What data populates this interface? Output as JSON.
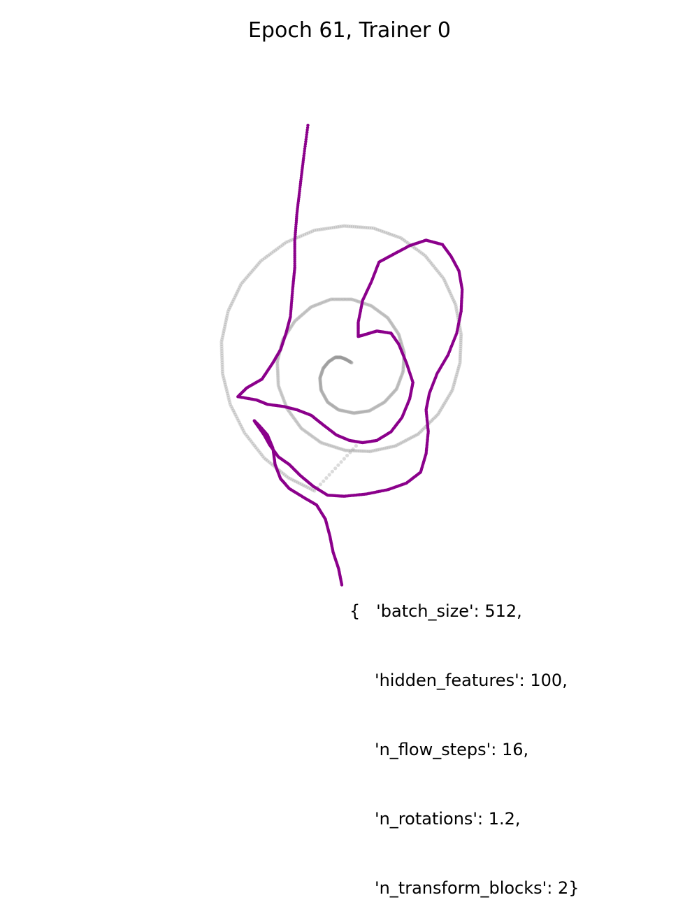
{
  "chart_data": {
    "type": "scatter",
    "title": "Epoch 61, Trainer 0",
    "axes_visible": false,
    "grid": false,
    "xlim": [
      -2.3,
      2.3
    ],
    "ylim": [
      -2.3,
      2.3
    ],
    "series": [
      {
        "role": "target",
        "color": "#999999",
        "values": [
          [
            0.02,
            -0.12
          ],
          [
            -0.03,
            -0.09
          ],
          [
            -0.08,
            -0.07
          ],
          [
            -0.13,
            -0.07
          ],
          [
            -0.19,
            -0.11
          ],
          [
            -0.24,
            -0.17
          ],
          [
            -0.27,
            -0.26
          ],
          [
            -0.26,
            -0.37
          ],
          [
            -0.2,
            -0.48
          ],
          [
            -0.1,
            -0.55
          ],
          [
            0.04,
            -0.58
          ],
          [
            0.18,
            -0.56
          ],
          [
            0.32,
            -0.48
          ],
          [
            0.43,
            -0.36
          ],
          [
            0.49,
            -0.2
          ],
          [
            0.5,
            -0.03
          ],
          [
            0.45,
            0.14
          ],
          [
            0.35,
            0.29
          ],
          [
            0.2,
            0.4
          ],
          [
            0.02,
            0.46
          ],
          [
            -0.17,
            0.46
          ],
          [
            -0.35,
            0.39
          ],
          [
            -0.5,
            0.26
          ],
          [
            -0.61,
            0.09
          ],
          [
            -0.66,
            -0.11
          ],
          [
            -0.65,
            -0.33
          ],
          [
            -0.57,
            -0.54
          ],
          [
            -0.44,
            -0.72
          ],
          [
            -0.26,
            -0.85
          ],
          [
            -0.04,
            -0.92
          ],
          [
            0.19,
            -0.93
          ],
          [
            0.42,
            -0.88
          ],
          [
            0.63,
            -0.77
          ],
          [
            0.81,
            -0.59
          ],
          [
            0.94,
            -0.37
          ],
          [
            1.01,
            -0.12
          ],
          [
            1.02,
            0.14
          ],
          [
            0.97,
            0.41
          ],
          [
            0.86,
            0.65
          ],
          [
            0.69,
            0.86
          ],
          [
            0.47,
            1.02
          ],
          [
            0.22,
            1.11
          ],
          [
            -0.05,
            1.13
          ],
          [
            -0.32,
            1.09
          ],
          [
            -0.58,
            0.98
          ],
          [
            -0.81,
            0.81
          ],
          [
            -0.99,
            0.6
          ],
          [
            -1.11,
            0.35
          ],
          [
            -1.17,
            0.07
          ],
          [
            -1.16,
            -0.22
          ],
          [
            -1.09,
            -0.5
          ],
          [
            -0.96,
            -0.76
          ],
          [
            -0.78,
            -0.99
          ],
          [
            -0.56,
            -1.17
          ],
          [
            -0.32,
            -1.29
          ],
          [
            0.06,
            -0.88
          ]
        ]
      },
      {
        "role": "samples",
        "color": "#8b008b",
        "values": [
          [
            -0.38,
            2.05
          ],
          [
            -0.42,
            1.75
          ],
          [
            -0.45,
            1.5
          ],
          [
            -0.48,
            1.25
          ],
          [
            -0.5,
            1.0
          ],
          [
            -0.5,
            0.75
          ],
          [
            -0.52,
            0.55
          ],
          [
            -0.54,
            0.3
          ],
          [
            -0.58,
            0.15
          ],
          [
            -0.63,
            0.0
          ],
          [
            -0.7,
            -0.12
          ],
          [
            -0.8,
            -0.27
          ],
          [
            -0.94,
            -0.35
          ],
          [
            -1.02,
            -0.43
          ],
          [
            -0.85,
            -0.46
          ],
          [
            -0.75,
            -0.5
          ],
          [
            -0.6,
            -0.52
          ],
          [
            -0.48,
            -0.55
          ],
          [
            -0.35,
            -0.6
          ],
          [
            -0.25,
            -0.68
          ],
          [
            -0.12,
            -0.78
          ],
          [
            0.0,
            -0.83
          ],
          [
            0.12,
            -0.85
          ],
          [
            0.25,
            -0.83
          ],
          [
            0.38,
            -0.75
          ],
          [
            0.48,
            -0.62
          ],
          [
            0.55,
            -0.45
          ],
          [
            0.58,
            -0.3
          ],
          [
            0.52,
            -0.12
          ],
          [
            0.45,
            0.05
          ],
          [
            0.38,
            0.15
          ],
          [
            0.25,
            0.17
          ],
          [
            0.15,
            0.14
          ],
          [
            0.08,
            0.12
          ],
          [
            0.08,
            0.25
          ],
          [
            0.12,
            0.45
          ],
          [
            0.2,
            0.62
          ],
          [
            0.27,
            0.8
          ],
          [
            0.4,
            0.87
          ],
          [
            0.55,
            0.95
          ],
          [
            0.7,
            1.0
          ],
          [
            0.85,
            0.96
          ],
          [
            0.93,
            0.85
          ],
          [
            1.0,
            0.72
          ],
          [
            1.03,
            0.55
          ],
          [
            1.02,
            0.35
          ],
          [
            0.98,
            0.15
          ],
          [
            0.9,
            -0.05
          ],
          [
            0.8,
            -0.22
          ],
          [
            0.73,
            -0.4
          ],
          [
            0.7,
            -0.55
          ],
          [
            0.72,
            -0.75
          ],
          [
            0.7,
            -0.95
          ],
          [
            0.65,
            -1.12
          ],
          [
            0.52,
            -1.22
          ],
          [
            0.35,
            -1.28
          ],
          [
            0.15,
            -1.32
          ],
          [
            -0.05,
            -1.34
          ],
          [
            -0.2,
            -1.33
          ],
          [
            -0.33,
            -1.25
          ],
          [
            -0.45,
            -1.15
          ],
          [
            -0.55,
            -1.05
          ],
          [
            -0.65,
            -0.98
          ],
          [
            -0.73,
            -0.87
          ],
          [
            -0.78,
            -0.78
          ],
          [
            -0.85,
            -0.68
          ],
          [
            -0.87,
            -0.65
          ],
          [
            -0.82,
            -0.7
          ],
          [
            -0.75,
            -0.78
          ],
          [
            -0.7,
            -0.9
          ],
          [
            -0.68,
            -1.05
          ],
          [
            -0.63,
            -1.18
          ],
          [
            -0.55,
            -1.27
          ],
          [
            -0.42,
            -1.35
          ],
          [
            -0.3,
            -1.42
          ],
          [
            -0.22,
            -1.55
          ],
          [
            -0.18,
            -1.7
          ],
          [
            -0.15,
            -1.85
          ],
          [
            -0.1,
            -2.0
          ],
          [
            -0.07,
            -2.15
          ]
        ]
      }
    ],
    "annotation": {
      "lines": [
        "{   'batch_size': 512,",
        "'hidden_features': 100,",
        "'n_flow_steps': 16,",
        "'n_rotations': 1.2,",
        "'n_transform_blocks': 2}"
      ]
    }
  }
}
